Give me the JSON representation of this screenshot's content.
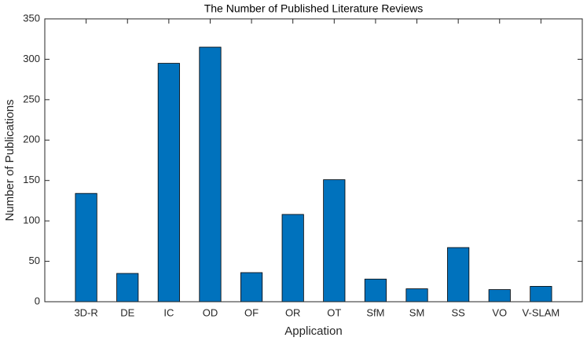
{
  "chart_data": {
    "type": "bar",
    "title": "The Number of Published Literature Reviews",
    "x_label": "Application",
    "y_label": "Number of Publications",
    "categories": [
      "3D-R",
      "DE",
      "IC",
      "OD",
      "OF",
      "OR",
      "OT",
      "SfM",
      "SM",
      "SS",
      "VO",
      "V-SLAM"
    ],
    "values": [
      134,
      35,
      295,
      315,
      36,
      108,
      151,
      28,
      16,
      67,
      15,
      19
    ],
    "color": "#0072bd",
    "ylim": [
      0,
      350
    ],
    "yticks": [
      0,
      50,
      100,
      150,
      200,
      250,
      300,
      350
    ],
    "grid": false
  }
}
